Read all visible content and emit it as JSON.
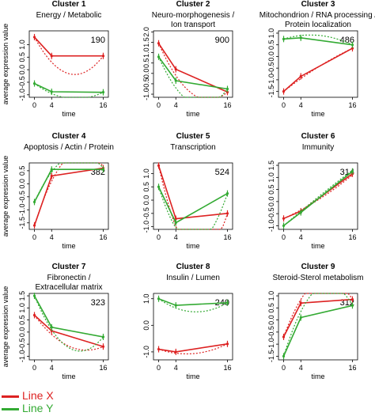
{
  "colors": {
    "line_x": "#dd2222",
    "line_y": "#33aa33"
  },
  "legend": [
    {
      "label": "Line X",
      "color": "#dd2222"
    },
    {
      "label": "Line Y",
      "color": "#33aa33"
    }
  ],
  "chart_data": [
    {
      "type": "line",
      "title": "Cluster 1",
      "subtitle": "Energy / Metabolic",
      "subtitle2": "",
      "count": "190",
      "xlabel": "time",
      "ylabel": "average expression value",
      "x": [
        0,
        4,
        16
      ],
      "x_ticks": [
        "0",
        "4",
        "16"
      ],
      "ylim": [
        -1.1,
        1.55
      ],
      "y_ticks": [
        -1.0,
        -0.5,
        0.0,
        0.5,
        1.0
      ],
      "y_tick_labels": [
        "-1.0",
        "-0.5",
        "0.0",
        "0.5",
        "1.0"
      ],
      "series": [
        {
          "name": "Line X",
          "values": [
            1.3,
            0.55,
            0.55
          ],
          "fit": [
            1.3,
            0.3,
            0.55
          ]
        },
        {
          "name": "Line Y",
          "values": [
            -0.55,
            -0.88,
            -0.9
          ],
          "fit": [
            -0.55,
            -0.95,
            -0.9
          ]
        }
      ]
    },
    {
      "type": "line",
      "title": "Cluster 2",
      "subtitle": "Neuro-morphogenesis /",
      "subtitle2": "Ion transport",
      "count": "900",
      "xlabel": "time",
      "ylabel": "",
      "x": [
        0,
        4,
        16
      ],
      "x_ticks": [
        "0",
        "4",
        "16"
      ],
      "ylim": [
        -1.15,
        2.05
      ],
      "y_ticks": [
        -1.0,
        -0.5,
        0.0,
        0.5,
        1.0,
        1.5,
        2.0
      ],
      "y_tick_labels": [
        "-1.0",
        "-0.5",
        "0.0",
        "0.5",
        "1.0",
        "1.5",
        "2.0"
      ],
      "series": [
        {
          "name": "Line X",
          "values": [
            1.45,
            0.2,
            -0.9
          ],
          "fit": [
            1.45,
            -0.1,
            -0.9
          ]
        },
        {
          "name": "Line Y",
          "values": [
            0.8,
            -0.35,
            -0.75
          ],
          "fit": [
            0.8,
            -0.7,
            -0.75
          ]
        }
      ]
    },
    {
      "type": "line",
      "title": "Cluster 3",
      "subtitle": "Mitochondrion / RNA processing /",
      "subtitle2": "Protein localization",
      "count": "486",
      "xlabel": "time",
      "ylabel": "",
      "x": [
        0,
        4,
        16
      ],
      "x_ticks": [
        "0",
        "4",
        "16"
      ],
      "ylim": [
        -1.75,
        1.1
      ],
      "y_ticks": [
        -1.5,
        -1.0,
        -0.5,
        0.0,
        0.5,
        1.0
      ],
      "y_tick_labels": [
        "-1.5",
        "-1.0",
        "-0.5",
        "0.0",
        "0.5",
        "1.0"
      ],
      "series": [
        {
          "name": "Line X",
          "values": [
            -1.5,
            -0.85,
            0.35
          ],
          "fit": [
            -1.5,
            -0.95,
            0.35
          ]
        },
        {
          "name": "Line Y",
          "values": [
            0.75,
            0.8,
            0.5
          ],
          "fit": [
            0.75,
            0.9,
            0.5
          ]
        }
      ]
    },
    {
      "type": "line",
      "title": "Cluster 4",
      "subtitle": "Apoptosis / Actin / Protein",
      "subtitle2": "",
      "count": "382",
      "xlabel": "time",
      "ylabel": "average expression value",
      "x": [
        0,
        4,
        16
      ],
      "x_ticks": [
        "0",
        "4",
        "16"
      ],
      "ylim": [
        -1.75,
        0.8
      ],
      "y_ticks": [
        -1.5,
        -1.0,
        -0.5,
        0.0,
        0.5
      ],
      "y_tick_labels": [
        "-1.5",
        "-1.0",
        "-0.5",
        "0.0",
        "0.5"
      ],
      "series": [
        {
          "name": "Line X",
          "values": [
            -1.6,
            0.3,
            0.6
          ],
          "fit": [
            -1.6,
            0.1,
            0.65
          ]
        },
        {
          "name": "Line Y",
          "values": [
            -0.7,
            0.55,
            0.55
          ],
          "fit": [
            -0.7,
            0.45,
            0.6
          ]
        }
      ]
    },
    {
      "type": "line",
      "title": "Cluster 5",
      "subtitle": "Transcription",
      "subtitle2": "",
      "count": "524",
      "xlabel": "time",
      "ylabel": "",
      "x": [
        0,
        4,
        16
      ],
      "x_ticks": [
        "0",
        "4",
        "16"
      ],
      "ylim": [
        -1.1,
        1.4
      ],
      "y_ticks": [
        -1.0,
        -0.5,
        0.0,
        0.5,
        1.0
      ],
      "y_tick_labels": [
        "-1.0",
        "-0.5",
        "0.0",
        "0.5",
        "1.0"
      ],
      "series": [
        {
          "name": "Line X",
          "values": [
            1.3,
            -0.7,
            -0.5
          ],
          "fit": [
            1.3,
            -1.0,
            -0.5
          ]
        },
        {
          "name": "Line Y",
          "values": [
            0.5,
            -0.85,
            0.25
          ],
          "fit": [
            0.5,
            -1.05,
            0.25
          ]
        }
      ]
    },
    {
      "type": "line",
      "title": "Cluster 6",
      "subtitle": "Immunity",
      "subtitle2": "",
      "count": "314",
      "xlabel": "time",
      "ylabel": "",
      "x": [
        0,
        4,
        16
      ],
      "x_ticks": [
        "0",
        "4",
        "16"
      ],
      "ylim": [
        -1.15,
        1.6
      ],
      "y_ticks": [
        -1.0,
        -0.5,
        0.0,
        0.5,
        1.0,
        1.5
      ],
      "y_tick_labels": [
        "-1.0",
        "-0.5",
        "0.0",
        "0.5",
        "1.0",
        "1.5"
      ],
      "series": [
        {
          "name": "Line X",
          "values": [
            -0.7,
            -0.4,
            1.15
          ],
          "fit": [
            -0.7,
            -0.35,
            1.1
          ]
        },
        {
          "name": "Line Y",
          "values": [
            -1.0,
            -0.45,
            1.25
          ],
          "fit": [
            -1.0,
            -0.4,
            1.3
          ]
        }
      ]
    },
    {
      "type": "line",
      "title": "Cluster 7",
      "subtitle": "Fibronectin /",
      "subtitle2": "Extracellular matrix",
      "count": "323",
      "xlabel": "time",
      "ylabel": "average expression value",
      "x": [
        0,
        4,
        16
      ],
      "x_ticks": [
        "0",
        "4",
        "16"
      ],
      "ylim": [
        -1.15,
        1.6
      ],
      "y_ticks": [
        -1.0,
        -0.5,
        0.0,
        0.5,
        1.0,
        1.5
      ],
      "y_tick_labels": [
        "-1.0",
        "-0.5",
        "0.0",
        "0.5",
        "1.0",
        "1.5"
      ],
      "series": [
        {
          "name": "Line X",
          "values": [
            0.7,
            0.05,
            -0.6
          ],
          "fit": [
            0.7,
            -0.1,
            -0.6
          ]
        },
        {
          "name": "Line Y",
          "values": [
            1.5,
            0.2,
            -0.2
          ],
          "fit": [
            1.5,
            0.1,
            -0.2
          ]
        }
      ]
    },
    {
      "type": "line",
      "title": "Cluster 8",
      "subtitle": "Insulin / Lumen",
      "subtitle2": "",
      "count": "240",
      "xlabel": "time",
      "ylabel": "",
      "x": [
        0,
        4,
        16
      ],
      "x_ticks": [
        "0",
        "4",
        "16"
      ],
      "ylim": [
        -1.3,
        1.2
      ],
      "y_ticks": [
        -1.0,
        0.0,
        1.0
      ],
      "y_tick_labels": [
        "-1.0",
        "0.0",
        "1.0"
      ],
      "series": [
        {
          "name": "Line X",
          "values": [
            -0.9,
            -1.0,
            -0.7
          ],
          "fit": [
            -0.9,
            -1.05,
            -0.7
          ]
        },
        {
          "name": "Line Y",
          "values": [
            1.0,
            0.75,
            0.85
          ],
          "fit": [
            1.0,
            0.65,
            0.85
          ]
        }
      ]
    },
    {
      "type": "line",
      "title": "Cluster 9",
      "subtitle": "Steroid-Sterol metabolism",
      "subtitle2": "",
      "count": "312",
      "xlabel": "time",
      "ylabel": "",
      "x": [
        0,
        4,
        16
      ],
      "x_ticks": [
        "0",
        "4",
        "16"
      ],
      "ylim": [
        -1.65,
        1.1
      ],
      "y_ticks": [
        -1.5,
        -1.0,
        -0.5,
        0.0,
        0.5,
        1.0
      ],
      "y_tick_labels": [
        "-1.5",
        "-1.0",
        "-0.5",
        "0.0",
        "0.5",
        "1.0"
      ],
      "series": [
        {
          "name": "Line X",
          "values": [
            -0.7,
            0.7,
            0.85
          ],
          "fit": [
            -0.7,
            0.85,
            0.85
          ]
        },
        {
          "name": "Line Y",
          "values": [
            -1.5,
            0.1,
            0.6
          ],
          "fit": [
            -1.5,
            0.35,
            0.6
          ]
        }
      ]
    }
  ]
}
